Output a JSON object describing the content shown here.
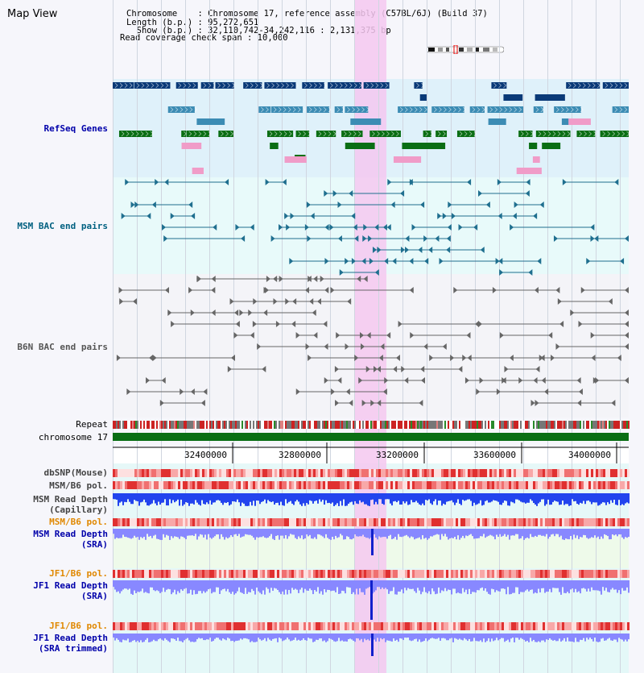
{
  "header": {
    "title": "Map View",
    "info_lines": [
      "Chromosome    : Chromosome 17, reference assembly (C57BL/6J) (Build 37)",
      "Length (b.p.) : 95,272,651",
      "  Show (b.p.) : 32,110,742-34,242,116 : 2,131,375 bp",
      "Read coverage check span : 10,000"
    ]
  },
  "tracks": {
    "refseq": {
      "label": "RefSeq Genes",
      "color": "#0000aa"
    },
    "msm_bac": {
      "label": "MSM BAC end pairs",
      "color": "#006080"
    },
    "b6n_bac": {
      "label": "B6N BAC end pairs",
      "color": "#555555"
    },
    "repeat": {
      "label": "Repeat"
    },
    "chromosome": {
      "label": "chromosome 17"
    },
    "dbsnp": {
      "label": "dbSNP(Mouse)"
    },
    "msm_b6_pol_1": {
      "label": "MSM/B6 pol."
    },
    "msm_depth_cap": {
      "label": "MSM Read Depth\n(Capillary)"
    },
    "msm_b6_pol_2": {
      "label": "MSM/B6 pol.",
      "color": "#e08800"
    },
    "msm_depth_sra": {
      "label": "MSM Read Depth\n(SRA)",
      "color": "#0000aa"
    },
    "jf1_b6_pol_1": {
      "label": "JF1/B6 pol.",
      "color": "#e08800"
    },
    "jf1_depth_sra": {
      "label": "JF1 Read Depth\n(SRA)",
      "color": "#0000aa"
    },
    "jf1_b6_pol_2": {
      "label": "JF1/B6 pol.",
      "color": "#e08800"
    },
    "jf1_depth_trim": {
      "label": "JF1 Read Depth\n(SRA trimmed)",
      "color": "#0000aa"
    }
  },
  "axis": {
    "ticks": [
      "32400000",
      "32800000",
      "33200000",
      "33600000",
      "34000000"
    ]
  },
  "colors": {
    "highlight": "#f4c8f0",
    "gene_dark": "#0a3a78",
    "gene_mid": "#3c8cb4",
    "gene_green": "#0a6e14",
    "gene_pink": "#f09cc8",
    "snp_red": "#e03030",
    "depth_blue": "#2244ee",
    "depth_light": "#8888ff"
  }
}
